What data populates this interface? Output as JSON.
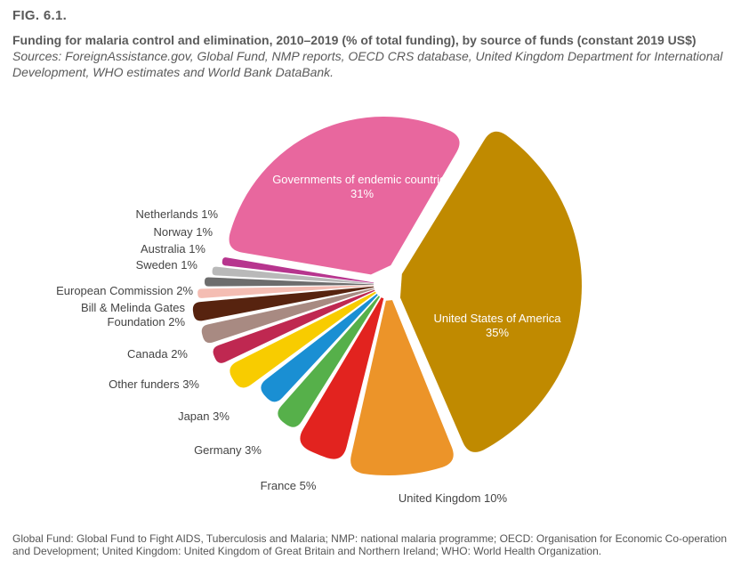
{
  "figure": {
    "label": "FIG. 6.1.",
    "title": "Funding for malaria control and elimination, 2010–2019 (% of total funding), by source of funds (constant 2019 US$)",
    "sources": "Sources: ForeignAssistance.gov, Global Fund, NMP reports, OECD CRS database, United Kingdom Department for International Development, WHO estimates and World Bank DataBank."
  },
  "chart_data": {
    "type": "pie",
    "title": "Funding for malaria control and elimination, 2010–2019 (% of total funding), by source of funds (constant 2019 US$)",
    "unit": "%",
    "slices": [
      {
        "label": "Governments of endemic countries",
        "value": 31,
        "color": "#e8679e",
        "label_inside": true
      },
      {
        "label": "United States of America",
        "value": 35,
        "color": "#c08a00",
        "label_inside": true
      },
      {
        "label": "United Kingdom",
        "value": 10,
        "color": "#ec9429",
        "label_inside": false
      },
      {
        "label": "France",
        "value": 5,
        "color": "#e2231f",
        "label_inside": false
      },
      {
        "label": "Germany",
        "value": 3,
        "color": "#56b04a",
        "label_inside": false
      },
      {
        "label": "Japan",
        "value": 3,
        "color": "#1a8fd3",
        "label_inside": false
      },
      {
        "label": "Other funders",
        "value": 3,
        "color": "#f8cc00",
        "label_inside": false
      },
      {
        "label": "Canada",
        "value": 2,
        "color": "#bf2851",
        "label_inside": false
      },
      {
        "label": "Bill & Melinda Gates Foundation",
        "value": 2,
        "color": "#a88a82",
        "label_inside": false
      },
      {
        "label": "European Commission",
        "value": 2,
        "color": "#57230f",
        "label_inside": false
      },
      {
        "label": "Sweden",
        "value": 1,
        "color": "#f4bdb3",
        "label_inside": false
      },
      {
        "label": "Australia",
        "value": 1,
        "color": "#6d6d6d",
        "label_inside": false
      },
      {
        "label": "Norway",
        "value": 1,
        "color": "#b9b9b9",
        "label_inside": false
      },
      {
        "label": "Netherlands",
        "value": 1,
        "color": "#b7358e",
        "label_inside": false
      }
    ],
    "display_labels": [
      {
        "lines": [
          "Governments of endemic countries",
          "31%"
        ]
      },
      {
        "lines": [
          "United States of America",
          "35%"
        ]
      },
      {
        "lines": [
          "United Kingdom 10%"
        ]
      },
      {
        "lines": [
          "France 5%"
        ]
      },
      {
        "lines": [
          "Germany 3%"
        ]
      },
      {
        "lines": [
          "Japan 3%"
        ]
      },
      {
        "lines": [
          "Other funders 3%"
        ]
      },
      {
        "lines": [
          "Canada 2%"
        ]
      },
      {
        "lines": [
          "Bill & Melinda Gates",
          "Foundation 2%"
        ]
      },
      {
        "lines": [
          "European Commission 2%"
        ]
      },
      {
        "lines": [
          "Sweden 1%"
        ]
      },
      {
        "lines": [
          "Australia 1%"
        ]
      },
      {
        "lines": [
          "Norway 1%"
        ]
      },
      {
        "lines": [
          "Netherlands 1%"
        ]
      }
    ]
  },
  "footnote": "Global Fund: Global Fund to Fight AIDS, Tuberculosis and Malaria; NMP: national malaria programme; OECD: Organisation for Economic Co-operation and Development; United Kingdom: United Kingdom of Great Britain and Northern Ireland; WHO: World Health Organization."
}
